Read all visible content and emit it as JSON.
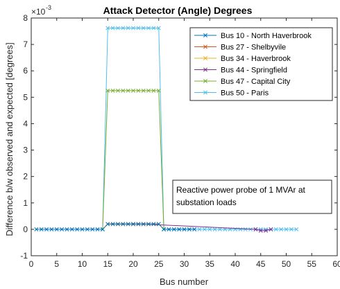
{
  "chart_data": {
    "type": "line",
    "title": "Attack Detector (Angle) Degrees",
    "xlabel": "Bus number",
    "ylabel": "Difference b/w observed and expected [degrees]",
    "y_scale_label": "×10",
    "y_scale_exponent": "-3",
    "xlim": [
      0,
      60
    ],
    "ylim": [
      -1,
      8
    ],
    "xticks": [
      "0",
      "5",
      "10",
      "15",
      "20",
      "25",
      "30",
      "35",
      "40",
      "45",
      "50",
      "55",
      "60"
    ],
    "yticks": [
      "-1",
      "0",
      "1",
      "2",
      "3",
      "4",
      "5",
      "6",
      "7",
      "8"
    ],
    "grid": false,
    "legend_position": "top-right",
    "annotation": [
      "Reactive power probe of 1 MVAr at",
      "substation loads"
    ],
    "series": [
      {
        "name": "Bus 10 - North Haverbrook",
        "color": "#0072BD",
        "x": [
          1,
          2,
          3,
          4,
          5,
          6,
          7,
          8,
          9,
          10,
          11,
          12,
          13,
          14,
          15,
          16,
          17,
          18,
          19,
          20,
          21,
          22,
          23,
          24,
          25,
          26,
          27,
          28,
          29,
          30,
          31,
          32
        ],
        "y": [
          0,
          0,
          0,
          0,
          0,
          0,
          0,
          0,
          0,
          0,
          0,
          0,
          0,
          0,
          0.2,
          0.2,
          0.2,
          0.2,
          0.2,
          0.2,
          0.2,
          0.2,
          0.2,
          0.2,
          0.2,
          0,
          0,
          0,
          0,
          0,
          0,
          0
        ]
      },
      {
        "name": "Bus 27 - Shelbyvile",
        "color": "#D95319",
        "x": [
          15,
          16,
          17,
          18,
          19,
          20,
          21,
          22,
          23,
          24,
          25
        ],
        "y": [
          0.2,
          0.2,
          0.2,
          0.2,
          0.2,
          0.2,
          0.2,
          0.2,
          0.2,
          0.2,
          0.2
        ]
      },
      {
        "name": "Bus 34 - Haverbrook",
        "color": "#EDB120",
        "x": [
          15,
          16,
          17,
          18,
          19,
          20,
          21,
          22,
          23,
          24,
          25
        ],
        "y": [
          0.2,
          0.2,
          0.2,
          0.2,
          0.2,
          0.2,
          0.2,
          0.2,
          0.2,
          0.2,
          0.2
        ]
      },
      {
        "name": "Bus 44 - Springfield",
        "color": "#7E2F8E",
        "x": [
          20,
          21,
          22,
          44,
          45,
          46,
          47
        ],
        "y": [
          0.2,
          0.2,
          0.2,
          0,
          -0.05,
          -0.05,
          0
        ]
      },
      {
        "name": "Bus 47 - Capital City",
        "color": "#77AC30",
        "x": [
          14,
          15,
          16,
          17,
          18,
          19,
          20,
          21,
          22,
          23,
          24,
          25,
          26
        ],
        "y": [
          0,
          5.25,
          5.25,
          5.25,
          5.25,
          5.25,
          5.25,
          5.25,
          5.25,
          5.25,
          5.25,
          5.25,
          0
        ]
      },
      {
        "name": "Bus 50 - Paris",
        "color": "#4DBEEE",
        "x": [
          14,
          15,
          16,
          17,
          18,
          19,
          20,
          21,
          22,
          23,
          24,
          25,
          26,
          27,
          28,
          29,
          30,
          31,
          32,
          33,
          34,
          35,
          36,
          37,
          38,
          39,
          40,
          41,
          42,
          43,
          44,
          45,
          46,
          47,
          48,
          49,
          50,
          51,
          52
        ],
        "y": [
          0,
          7.62,
          7.62,
          7.62,
          7.62,
          7.62,
          7.62,
          7.62,
          7.62,
          7.62,
          7.62,
          7.62,
          0,
          0,
          0,
          0,
          0,
          0,
          0,
          0,
          0,
          0,
          0,
          0,
          0,
          0,
          0,
          0,
          0,
          0,
          0,
          0,
          0,
          0,
          0,
          0,
          0,
          0,
          0
        ]
      }
    ]
  }
}
